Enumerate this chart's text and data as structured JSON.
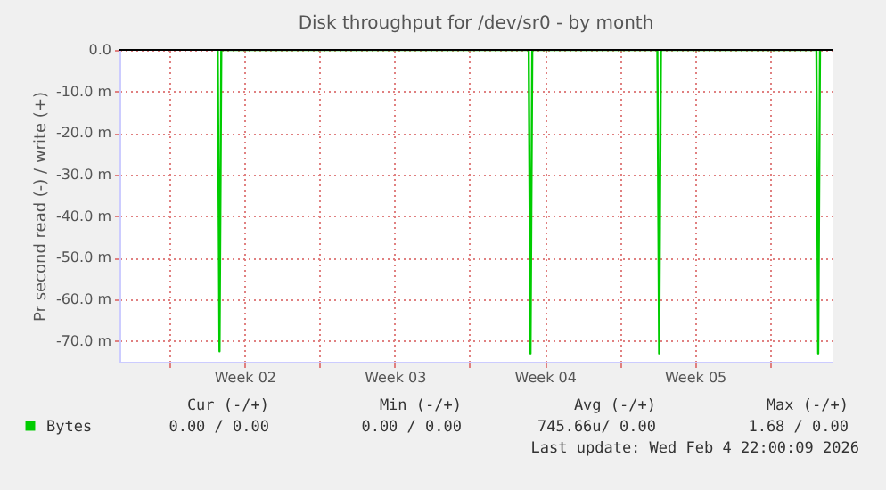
{
  "chart_data": {
    "type": "line",
    "title": "Disk throughput for /dev/sr0 - by month",
    "ylabel": "Pr second read (-) / write (+)",
    "xlim": [
      "2026-01-02T16:00",
      "2026-02-04T22:00"
    ],
    "xticks": [
      {
        "value": "2026-01-05T00:00",
        "label": null
      },
      {
        "value": "2026-01-08T12:00",
        "label": "Week 02"
      },
      {
        "value": "2026-01-12T00:00",
        "label": null
      },
      {
        "value": "2026-01-15T12:00",
        "label": "Week 03"
      },
      {
        "value": "2026-01-19T00:00",
        "label": null
      },
      {
        "value": "2026-01-22T12:00",
        "label": "Week 04"
      },
      {
        "value": "2026-01-26T00:00",
        "label": null
      },
      {
        "value": "2026-01-29T12:00",
        "label": "Week 05"
      },
      {
        "value": "2026-02-02T00:00",
        "label": null
      }
    ],
    "ylim": [
      -75,
      0
    ],
    "yticks": [
      {
        "value": 0,
        "label": "0.0"
      },
      {
        "value": -10,
        "label": "-10.0 m"
      },
      {
        "value": -20,
        "label": "-20.0 m"
      },
      {
        "value": -30,
        "label": "-30.0 m"
      },
      {
        "value": -40,
        "label": "-40.0 m"
      },
      {
        "value": -50,
        "label": "-50.0 m"
      },
      {
        "value": -60,
        "label": "-60.0 m"
      },
      {
        "value": -70,
        "label": "-70.0 m"
      }
    ],
    "grid": true,
    "legend": "bottom left",
    "series": [
      {
        "name": "Bytes",
        "color": "#00cc00",
        "x": [
          "2026-01-07T06:00",
          "2026-01-07T08:00",
          "2026-01-07T10:00",
          "2026-01-21T18:00",
          "2026-01-21T20:00",
          "2026-01-21T22:00",
          "2026-01-27T18:00",
          "2026-01-27T20:00",
          "2026-01-27T22:00",
          "2026-02-04T04:00",
          "2026-02-04T06:00",
          "2026-02-04T08:00"
        ],
        "values": [
          0,
          -72.5,
          0,
          0,
          -73,
          0,
          0,
          -73,
          0,
          0,
          -73,
          0
        ]
      }
    ],
    "annotations": [
      "Cur (-/+)",
      "Min (-/+)",
      "Avg (-/+)",
      "Max (-/+)",
      "0.00 /  0.00",
      "0.00 /  0.00",
      "745.66u/  0.00",
      "1.68 /  0.00",
      "Last update: Wed Feb  4 22:00:09 2026"
    ]
  }
}
